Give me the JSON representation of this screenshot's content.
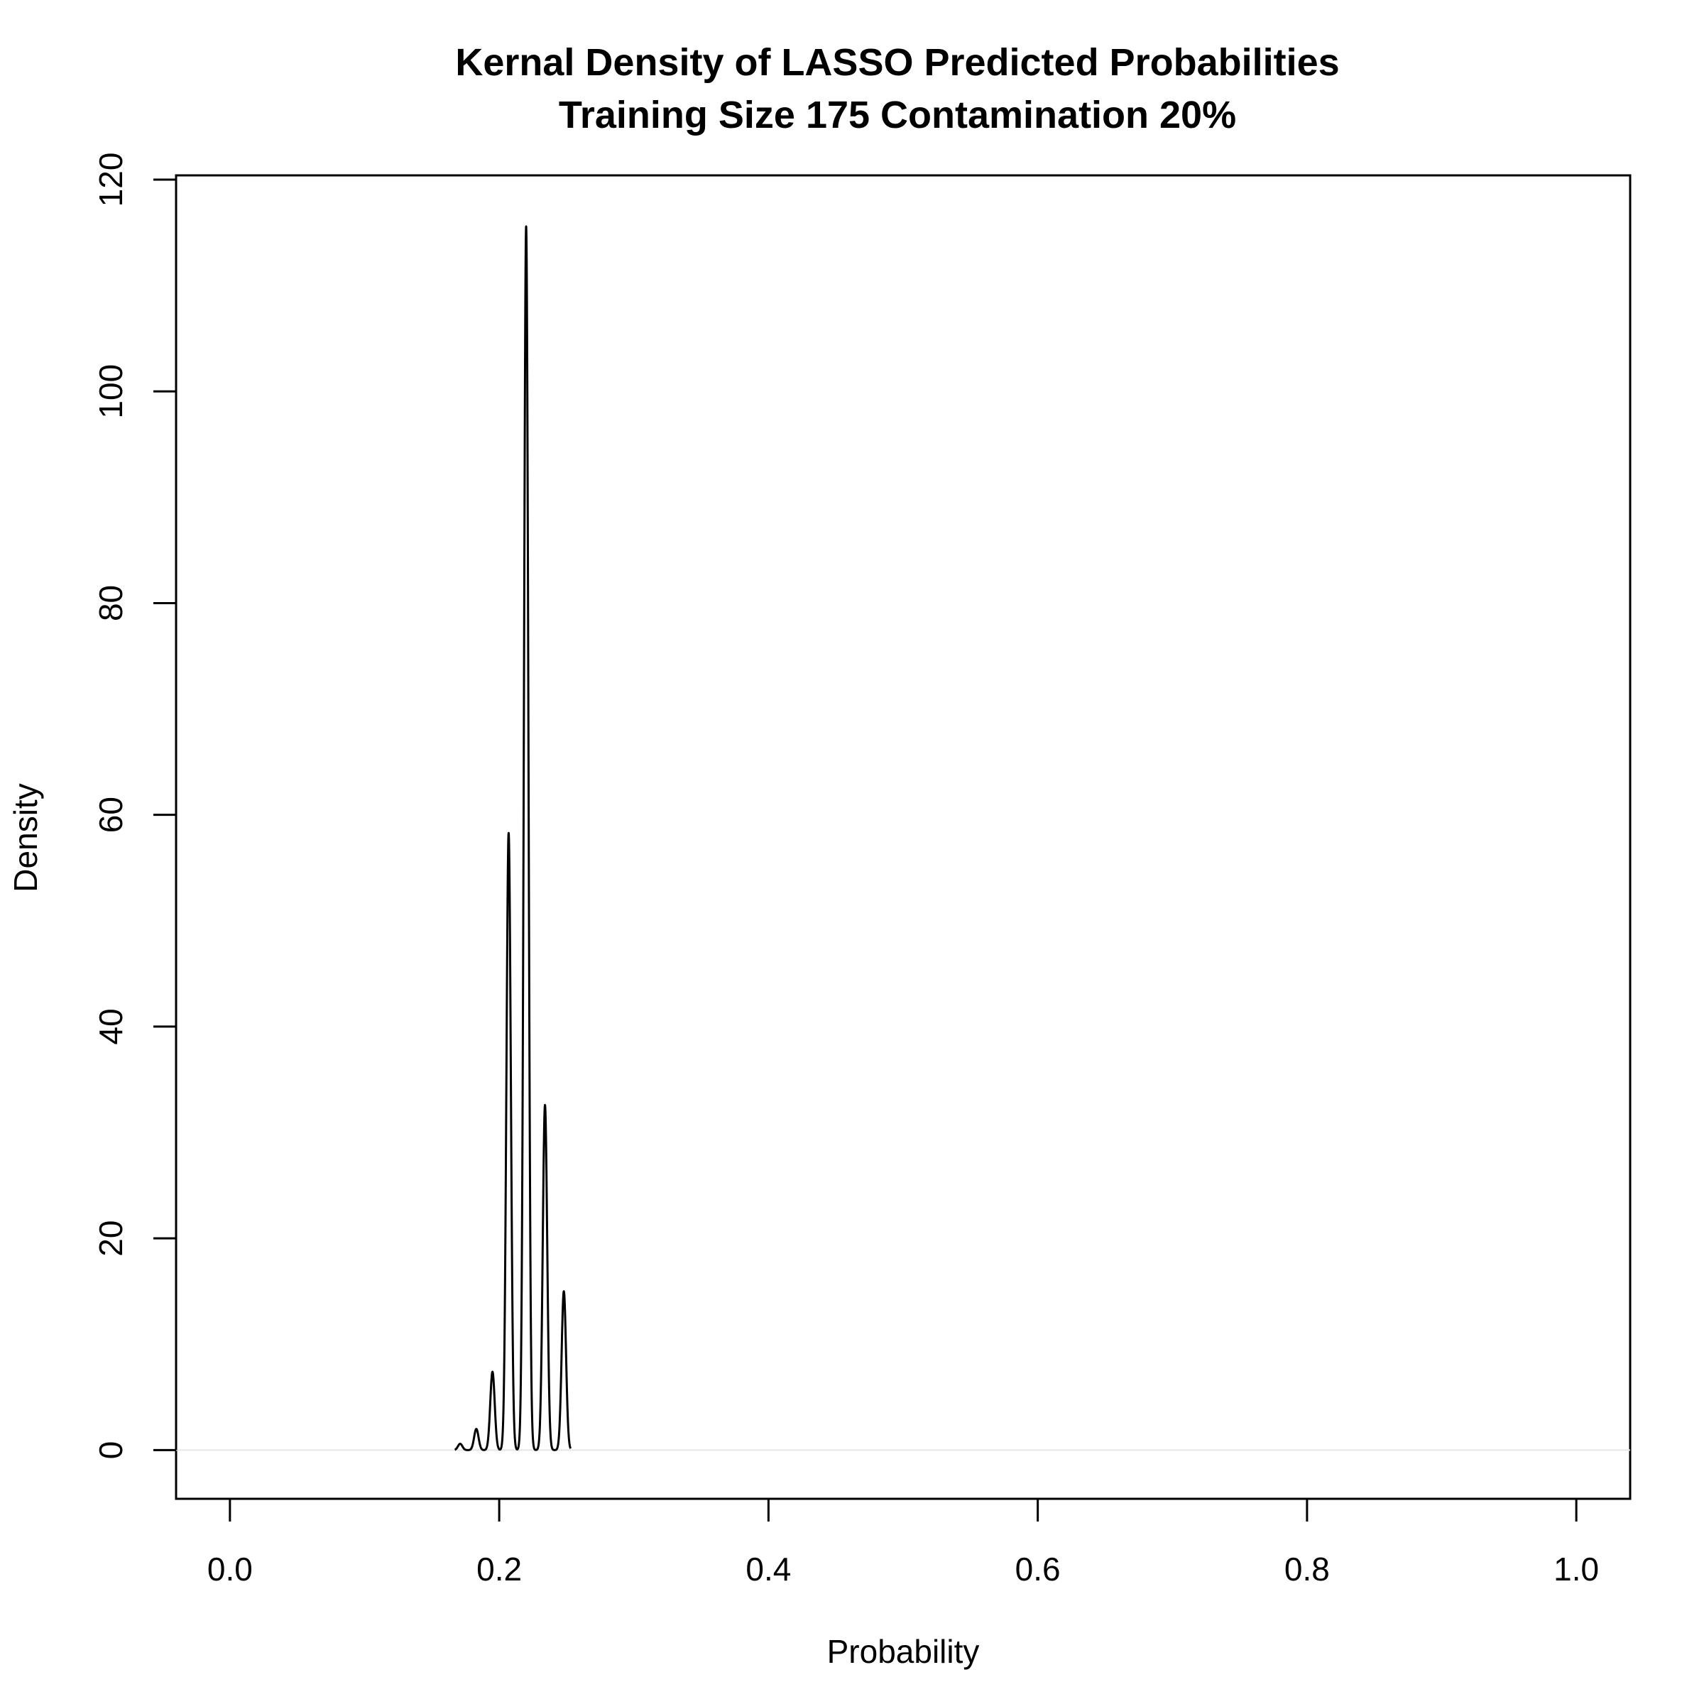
{
  "chart_data": {
    "type": "line",
    "title": "Kernal Density of LASSO Predicted Probabilities",
    "subtitle": "Training Size 175 Contamination 20%",
    "xlabel": "Probability",
    "ylabel": "Density",
    "xlim": [
      -0.04,
      1.04
    ],
    "ylim": [
      -4.6,
      120.4
    ],
    "x_ticks": [
      0.0,
      0.2,
      0.4,
      0.6,
      0.8,
      1.0
    ],
    "x_tick_labels": [
      "0.0",
      "0.2",
      "0.4",
      "0.6",
      "0.8",
      "1.0"
    ],
    "y_ticks": [
      0,
      20,
      40,
      60,
      80,
      100,
      120
    ],
    "y_tick_labels": [
      "0",
      "20",
      "40",
      "60",
      "80",
      "100",
      "120"
    ],
    "grid": false,
    "baseline": 0,
    "series": [
      {
        "x_range": [
          0.167,
          0.253
        ],
        "peaks": [
          {
            "x": 0.171,
            "y": 0.6
          },
          {
            "x": 0.183,
            "y": 2.0
          },
          {
            "x": 0.195,
            "y": 7.4
          },
          {
            "x": 0.207,
            "y": 58.3
          },
          {
            "x": 0.22,
            "y": 115.6
          },
          {
            "x": 0.234,
            "y": 32.6
          },
          {
            "x": 0.248,
            "y": 15.0
          }
        ]
      }
    ]
  }
}
